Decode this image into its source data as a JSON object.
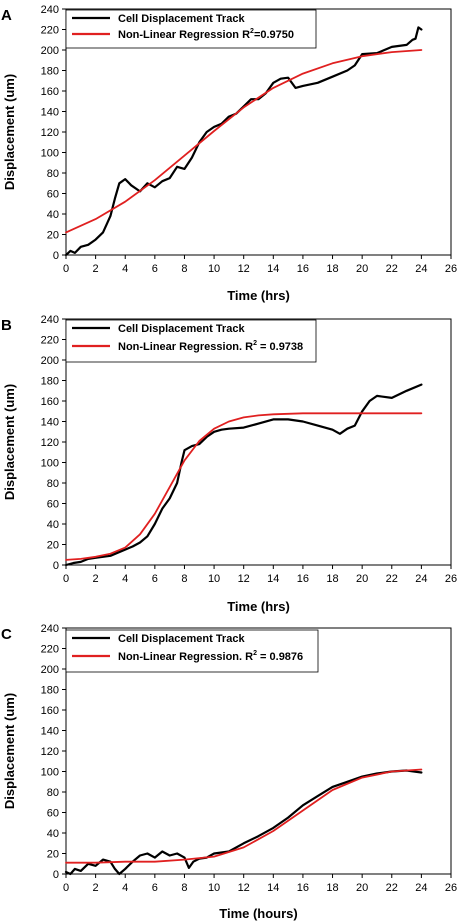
{
  "chart_data": [
    {
      "type": "line",
      "panel_label": "A",
      "xlabel": "Time (hrs)",
      "ylabel": "Displacement (um)",
      "xlim": [
        0,
        26
      ],
      "ylim": [
        0,
        240
      ],
      "xticks": [
        0,
        2,
        4,
        6,
        8,
        10,
        12,
        14,
        16,
        18,
        20,
        22,
        24,
        26
      ],
      "yticks": [
        0,
        20,
        40,
        60,
        80,
        100,
        120,
        140,
        160,
        180,
        200,
        220,
        240
      ],
      "legend": {
        "placement": "top-left",
        "entries": [
          {
            "label": "Cell Displacement Track",
            "suffix": "",
            "color": "#000000"
          },
          {
            "label": "Non-Linear Regression  R",
            "suffix": "=0.9750",
            "color": "#e02020"
          }
        ]
      },
      "series": [
        {
          "name": "Cell Displacement Track",
          "color": "#000000",
          "points": [
            [
              0,
              0
            ],
            [
              0.3,
              4
            ],
            [
              0.6,
              2
            ],
            [
              1,
              8
            ],
            [
              1.5,
              10
            ],
            [
              2,
              15
            ],
            [
              2.5,
              22
            ],
            [
              3,
              38
            ],
            [
              3.3,
              55
            ],
            [
              3.6,
              70
            ],
            [
              4,
              74
            ],
            [
              4.4,
              68
            ],
            [
              5,
              62
            ],
            [
              5.5,
              70
            ],
            [
              6,
              66
            ],
            [
              6.5,
              72
            ],
            [
              7,
              75
            ],
            [
              7.5,
              86
            ],
            [
              8,
              84
            ],
            [
              8.5,
              95
            ],
            [
              9,
              110
            ],
            [
              9.5,
              120
            ],
            [
              10,
              125
            ],
            [
              10.5,
              128
            ],
            [
              11,
              135
            ],
            [
              11.5,
              138
            ],
            [
              12,
              145
            ],
            [
              12.5,
              152
            ],
            [
              13,
              152
            ],
            [
              13.5,
              158
            ],
            [
              14,
              168
            ],
            [
              14.5,
              172
            ],
            [
              15,
              173
            ],
            [
              15.5,
              163
            ],
            [
              16,
              165
            ],
            [
              17,
              168
            ],
            [
              18,
              174
            ],
            [
              19,
              180
            ],
            [
              19.5,
              185
            ],
            [
              20,
              196
            ],
            [
              21,
              197
            ],
            [
              22,
              203
            ],
            [
              23,
              205
            ],
            [
              23.4,
              210
            ],
            [
              23.6,
              211
            ],
            [
              23.8,
              222
            ],
            [
              24,
              220
            ]
          ]
        },
        {
          "name": "Non-Linear Regression  R",
          "color": "#e02020",
          "points": [
            [
              0,
              22
            ],
            [
              2,
              35
            ],
            [
              4,
              52
            ],
            [
              6,
              73
            ],
            [
              8,
              97
            ],
            [
              10,
              121
            ],
            [
              12,
              144
            ],
            [
              14,
              163
            ],
            [
              16,
              177
            ],
            [
              18,
              187
            ],
            [
              20,
              194
            ],
            [
              22,
              198
            ],
            [
              24,
              200
            ]
          ]
        }
      ]
    },
    {
      "type": "line",
      "panel_label": "B",
      "xlabel": "Time (hrs)",
      "ylabel": "Displacement (um)",
      "xlim": [
        0,
        26
      ],
      "ylim": [
        0,
        240
      ],
      "xticks": [
        0,
        2,
        4,
        6,
        8,
        10,
        12,
        14,
        16,
        18,
        20,
        22,
        24,
        26
      ],
      "yticks": [
        0,
        20,
        40,
        60,
        80,
        100,
        120,
        140,
        160,
        180,
        200,
        220,
        240
      ],
      "legend": {
        "placement": "top-left",
        "entries": [
          {
            "label": "Cell Displacement Track",
            "suffix": "",
            "color": "#000000"
          },
          {
            "label": "Non-Linear Regression. R",
            "suffix": " = 0.9738",
            "color": "#e02020"
          }
        ]
      },
      "series": [
        {
          "name": "Cell Displacement Track",
          "color": "#000000",
          "points": [
            [
              0,
              0
            ],
            [
              0.5,
              2
            ],
            [
              1,
              3
            ],
            [
              1.5,
              6
            ],
            [
              2,
              7
            ],
            [
              2.5,
              8
            ],
            [
              3,
              9
            ],
            [
              3.5,
              12
            ],
            [
              4,
              15
            ],
            [
              4.5,
              18
            ],
            [
              5,
              22
            ],
            [
              5.5,
              28
            ],
            [
              6,
              40
            ],
            [
              6.5,
              55
            ],
            [
              7,
              65
            ],
            [
              7.5,
              80
            ],
            [
              7.8,
              100
            ],
            [
              8,
              112
            ],
            [
              8.5,
              116
            ],
            [
              9,
              118
            ],
            [
              9.5,
              125
            ],
            [
              10,
              130
            ],
            [
              10.5,
              132
            ],
            [
              11,
              133
            ],
            [
              12,
              134
            ],
            [
              13,
              138
            ],
            [
              14,
              142
            ],
            [
              15,
              142
            ],
            [
              16,
              140
            ],
            [
              17,
              136
            ],
            [
              18,
              132
            ],
            [
              18.5,
              128
            ],
            [
              19,
              133
            ],
            [
              19.5,
              136
            ],
            [
              20,
              150
            ],
            [
              20.5,
              160
            ],
            [
              21,
              165
            ],
            [
              22,
              163
            ],
            [
              23,
              170
            ],
            [
              24,
              176
            ]
          ]
        },
        {
          "name": "Non-Linear Regression. R",
          "color": "#e02020",
          "points": [
            [
              0,
              5
            ],
            [
              1,
              6
            ],
            [
              2,
              8
            ],
            [
              3,
              11
            ],
            [
              4,
              17
            ],
            [
              5,
              30
            ],
            [
              6,
              50
            ],
            [
              7,
              76
            ],
            [
              8,
              102
            ],
            [
              9,
              121
            ],
            [
              10,
              133
            ],
            [
              11,
              140
            ],
            [
              12,
              144
            ],
            [
              13,
              146
            ],
            [
              14,
              147
            ],
            [
              16,
              148
            ],
            [
              18,
              148
            ],
            [
              20,
              148
            ],
            [
              22,
              148
            ],
            [
              24,
              148
            ]
          ]
        }
      ]
    },
    {
      "type": "line",
      "panel_label": "C",
      "xlabel": "Time (hours)",
      "ylabel": "Displacement (um)",
      "xlim": [
        0,
        26
      ],
      "ylim": [
        0,
        240
      ],
      "xticks": [
        0,
        2,
        4,
        6,
        8,
        10,
        12,
        14,
        16,
        18,
        20,
        22,
        24,
        26
      ],
      "yticks": [
        0,
        20,
        40,
        60,
        80,
        100,
        120,
        140,
        160,
        180,
        200,
        220,
        240
      ],
      "legend": {
        "placement": "top-left",
        "entries": [
          {
            "label": "Cell Displacement Track",
            "suffix": "",
            "color": "#000000"
          },
          {
            "label": "Non-Linear Regression. R",
            "suffix": " = 0.9876",
            "color": "#e02020"
          }
        ]
      },
      "series": [
        {
          "name": "Cell Displacement Track",
          "color": "#000000",
          "points": [
            [
              0,
              2
            ],
            [
              0.3,
              0
            ],
            [
              0.6,
              5
            ],
            [
              1,
              3
            ],
            [
              1.5,
              10
            ],
            [
              2,
              8
            ],
            [
              2.5,
              14
            ],
            [
              3,
              12
            ],
            [
              3.3,
              5
            ],
            [
              3.6,
              0
            ],
            [
              4,
              5
            ],
            [
              4.5,
              12
            ],
            [
              5,
              18
            ],
            [
              5.5,
              20
            ],
            [
              6,
              16
            ],
            [
              6.5,
              22
            ],
            [
              7,
              18
            ],
            [
              7.5,
              20
            ],
            [
              8,
              16
            ],
            [
              8.3,
              6
            ],
            [
              8.6,
              12
            ],
            [
              9,
              15
            ],
            [
              9.5,
              16
            ],
            [
              10,
              20
            ],
            [
              11,
              22
            ],
            [
              12,
              30
            ],
            [
              13,
              37
            ],
            [
              14,
              45
            ],
            [
              15,
              55
            ],
            [
              16,
              67
            ],
            [
              17,
              76
            ],
            [
              18,
              85
            ],
            [
              19,
              90
            ],
            [
              20,
              95
            ],
            [
              21,
              98
            ],
            [
              22,
              100
            ],
            [
              23,
              101
            ],
            [
              24,
              99
            ]
          ]
        },
        {
          "name": "Non-Linear Regression. R",
          "color": "#e02020",
          "points": [
            [
              0,
              11
            ],
            [
              2,
              11
            ],
            [
              4,
              12
            ],
            [
              6,
              12
            ],
            [
              8,
              14
            ],
            [
              10,
              17
            ],
            [
              12,
              26
            ],
            [
              14,
              42
            ],
            [
              16,
              62
            ],
            [
              18,
              82
            ],
            [
              20,
              94
            ],
            [
              22,
              100
            ],
            [
              24,
              102
            ]
          ]
        }
      ]
    }
  ]
}
